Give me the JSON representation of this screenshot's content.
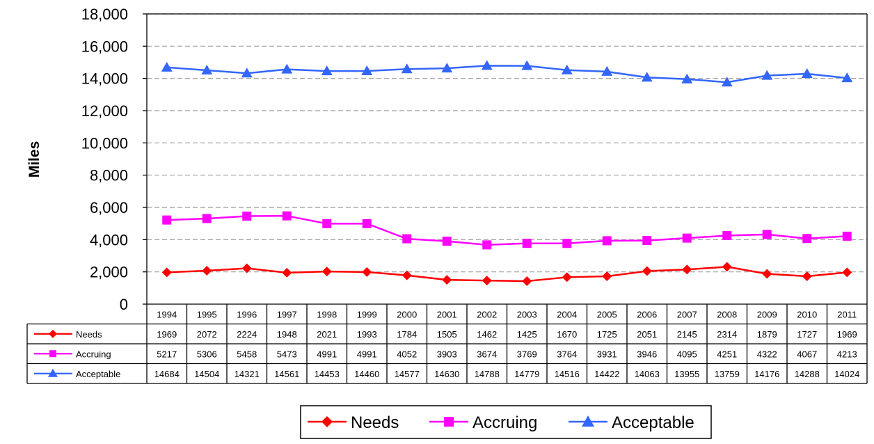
{
  "chart_data": {
    "type": "line",
    "title": "",
    "xlabel": "",
    "ylabel": "Miles",
    "ylim": [
      0,
      18000
    ],
    "ytick_step": 2000,
    "ytick_labels": [
      "0",
      "2,000",
      "4,000",
      "6,000",
      "8,000",
      "10,000",
      "12,000",
      "14,000",
      "16,000",
      "18,000"
    ],
    "grid": true,
    "legend_position": "bottom",
    "data_table": true,
    "categories": [
      "1994",
      "1995",
      "1996",
      "1997",
      "1998",
      "1999",
      "2000",
      "2001",
      "2002",
      "2003",
      "2004",
      "2005",
      "2006",
      "2007",
      "2008",
      "2009",
      "2010",
      "2011"
    ],
    "series": [
      {
        "name": "Needs",
        "color": "#ff0000",
        "marker": "diamond",
        "values": [
          1969,
          2072,
          2224,
          1948,
          2021,
          1993,
          1784,
          1505,
          1462,
          1425,
          1670,
          1725,
          2051,
          2145,
          2314,
          1879,
          1727,
          1969
        ]
      },
      {
        "name": "Accruing",
        "color": "#ff00ff",
        "marker": "square",
        "values": [
          5217,
          5306,
          5458,
          5473,
          4991,
          4991,
          4052,
          3903,
          3674,
          3769,
          3764,
          3931,
          3946,
          4095,
          4251,
          4322,
          4067,
          4213
        ]
      },
      {
        "name": "Acceptable",
        "color": "#3366ff",
        "marker": "triangle",
        "values": [
          14684,
          14504,
          14321,
          14561,
          14453,
          14460,
          14577,
          14630,
          14788,
          14779,
          14516,
          14422,
          14063,
          13955,
          13759,
          14176,
          14288,
          14024
        ]
      }
    ]
  }
}
